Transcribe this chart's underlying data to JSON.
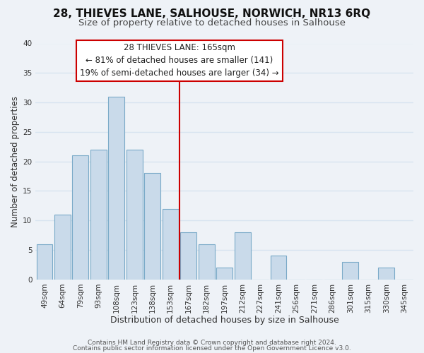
{
  "title": "28, THIEVES LANE, SALHOUSE, NORWICH, NR13 6RQ",
  "subtitle": "Size of property relative to detached houses in Salhouse",
  "xlabel": "Distribution of detached houses by size in Salhouse",
  "ylabel": "Number of detached properties",
  "bar_color": "#c9daea",
  "bar_edge_color": "#7aaac8",
  "vline_color": "#cc0000",
  "categories": [
    "49sqm",
    "64sqm",
    "79sqm",
    "93sqm",
    "108sqm",
    "123sqm",
    "138sqm",
    "153sqm",
    "167sqm",
    "182sqm",
    "197sqm",
    "212sqm",
    "227sqm",
    "241sqm",
    "256sqm",
    "271sqm",
    "286sqm",
    "301sqm",
    "315sqm",
    "330sqm",
    "345sqm"
  ],
  "values": [
    6,
    11,
    21,
    22,
    31,
    22,
    18,
    12,
    8,
    6,
    2,
    8,
    0,
    4,
    0,
    0,
    0,
    3,
    0,
    2,
    0
  ],
  "vline_index": 8,
  "ylim": [
    0,
    40
  ],
  "yticks": [
    0,
    5,
    10,
    15,
    20,
    25,
    30,
    35,
    40
  ],
  "annotation_title": "28 THIEVES LANE: 165sqm",
  "annotation_line1": "← 81% of detached houses are smaller (141)",
  "annotation_line2": "19% of semi-detached houses are larger (34) →",
  "footer1": "Contains HM Land Registry data © Crown copyright and database right 2024.",
  "footer2": "Contains public sector information licensed under the Open Government Licence v3.0.",
  "background_color": "#eef2f7",
  "grid_color": "#d8e4f0",
  "title_fontsize": 11,
  "subtitle_fontsize": 9.5,
  "xlabel_fontsize": 9,
  "ylabel_fontsize": 8.5,
  "tick_fontsize": 7.5,
  "annotation_fontsize": 8.5,
  "footer_fontsize": 6.5
}
